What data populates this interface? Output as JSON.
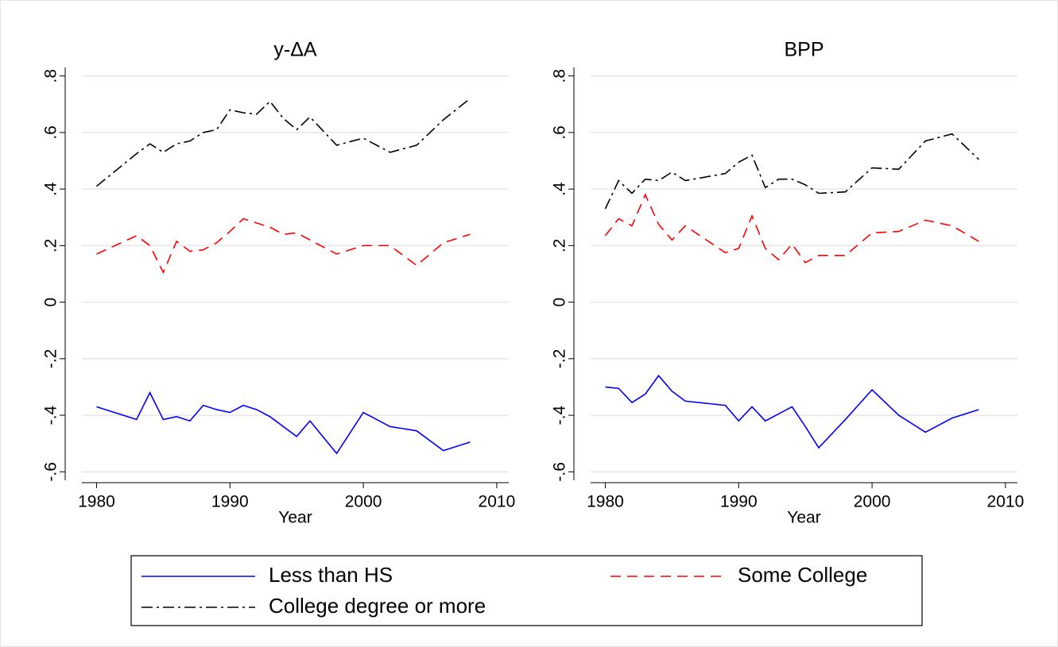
{
  "chart_data": [
    {
      "type": "line",
      "title": "y-ΔA",
      "x_label": "Year",
      "x": [
        1980,
        1983,
        1984,
        1985,
        1986,
        1987,
        1988,
        1989,
        1990,
        1991,
        1992,
        1993,
        1994,
        1995,
        1996,
        1998,
        2000,
        2002,
        2004,
        2006,
        2008
      ],
      "series": [
        {
          "name": "Less than HS",
          "color": "#0000ff",
          "style": "solid",
          "values": [
            -0.37,
            -0.415,
            -0.32,
            -0.415,
            -0.405,
            -0.42,
            -0.365,
            -0.38,
            -0.39,
            -0.365,
            -0.38,
            -0.405,
            -0.44,
            -0.475,
            -0.42,
            -0.535,
            -0.39,
            -0.44,
            -0.455,
            -0.525,
            -0.495
          ]
        },
        {
          "name": "Some College",
          "color": "#ff0000",
          "style": "dash",
          "values": [
            0.17,
            0.235,
            0.2,
            0.105,
            0.215,
            0.18,
            0.185,
            0.21,
            0.25,
            0.295,
            0.28,
            0.265,
            0.24,
            0.245,
            0.22,
            0.17,
            0.2,
            0.2,
            0.13,
            0.21,
            0.24
          ]
        },
        {
          "name": "College degree or more",
          "color": "#000000",
          "style": "dashdot",
          "values": [
            0.41,
            0.525,
            0.56,
            0.53,
            0.56,
            0.57,
            0.6,
            0.61,
            0.68,
            0.67,
            0.665,
            0.71,
            0.65,
            0.61,
            0.655,
            0.555,
            0.58,
            0.53,
            0.555,
            0.645,
            0.72
          ]
        }
      ],
      "xlim": [
        1978.9,
        2010.9
      ],
      "xticks": [
        1980,
        1990,
        2000,
        2010
      ],
      "ylim": [
        -0.63,
        0.83
      ],
      "yticks": [
        {
          "value": -0.6,
          "label": "-.6"
        },
        {
          "value": -0.4,
          "label": "-.4"
        },
        {
          "value": -0.2,
          "label": "-.2"
        },
        0,
        {
          "value": 0.2,
          "label": ".2"
        },
        {
          "value": 0.4,
          "label": ".4"
        },
        {
          "value": 0.6,
          "label": ".6"
        },
        {
          "value": 0.8,
          "label": ".8"
        }
      ],
      "grid": true
    },
    {
      "type": "line",
      "title": "BPP",
      "x_label": "Year",
      "x": [
        1980,
        1981,
        1982,
        1983,
        1984,
        1985,
        1986,
        1989,
        1990,
        1991,
        1992,
        1993,
        1994,
        1995,
        1996,
        1998,
        2000,
        2002,
        2004,
        2006,
        2008
      ],
      "series": [
        {
          "color": "#0000ff",
          "style": "solid",
          "values": [
            -0.3,
            -0.305,
            -0.355,
            -0.325,
            -0.26,
            -0.315,
            -0.35,
            -0.365,
            -0.42,
            -0.37,
            -0.42,
            -0.395,
            -0.37,
            -0.44,
            -0.515,
            -0.415,
            -0.31,
            -0.4,
            -0.46,
            -0.41,
            -0.38
          ]
        },
        {
          "color": "#ff0000",
          "style": "dash",
          "values": [
            0.235,
            0.295,
            0.27,
            0.38,
            0.275,
            0.22,
            0.27,
            0.175,
            0.19,
            0.305,
            0.19,
            0.15,
            0.205,
            0.14,
            0.165,
            0.165,
            0.245,
            0.25,
            0.29,
            0.27,
            0.215
          ]
        },
        {
          "color": "#000000",
          "style": "dashdot",
          "values": [
            0.33,
            0.43,
            0.385,
            0.435,
            0.43,
            0.46,
            0.43,
            0.455,
            0.495,
            0.52,
            0.405,
            0.435,
            0.435,
            0.415,
            0.385,
            0.39,
            0.475,
            0.47,
            0.57,
            0.595,
            0.505
          ]
        }
      ],
      "xlim": [
        1978.9,
        2010.9
      ],
      "xticks": [
        1980,
        1990,
        2000,
        2010
      ],
      "ylim": [
        -0.63,
        0.83
      ],
      "yticks": [
        {
          "value": -0.6,
          "label": "-.6"
        },
        {
          "value": -0.4,
          "label": "-.4"
        },
        {
          "value": -0.2,
          "label": "-.2"
        },
        0,
        {
          "value": 0.2,
          "label": ".2"
        },
        {
          "value": 0.4,
          "label": ".4"
        },
        {
          "value": 0.6,
          "label": ".6"
        },
        {
          "value": 0.8,
          "label": ".8"
        }
      ],
      "grid": true
    }
  ]
}
